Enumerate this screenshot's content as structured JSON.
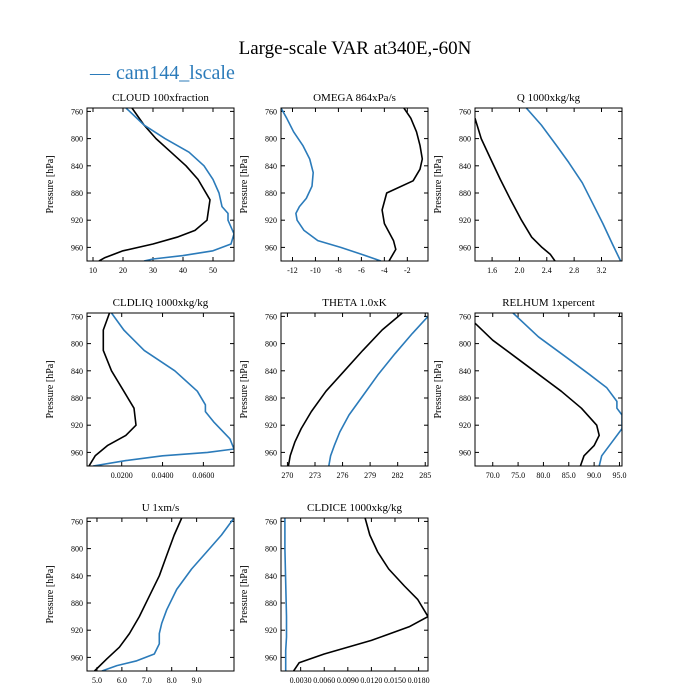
{
  "title": "Large-scale VAR at340E,-60N",
  "legend": {
    "marker": "—",
    "label": "cam144_lscale",
    "color": "#2b7bba"
  },
  "colors": {
    "black_series": "#000000",
    "blue_series": "#2b7bba"
  },
  "chart_data": [
    {
      "id": "cloud",
      "type": "line",
      "title": "CLOUD  100xfraction",
      "ylabel": "Pressure [hPa]",
      "xlim": [
        8,
        57
      ],
      "ylim": [
        980,
        755
      ],
      "xticks": [
        10,
        20,
        30,
        40,
        50
      ],
      "xtick_labels": [
        "10",
        "20",
        "30",
        "40",
        "50"
      ],
      "yticks": [
        760,
        800,
        840,
        880,
        920,
        960
      ],
      "ytick_labels": [
        "760",
        "800",
        "840",
        "880",
        "920",
        "960"
      ],
      "series": [
        {
          "name": "black",
          "x": [
            23,
            27,
            31,
            36,
            41,
            45,
            49,
            48,
            44,
            38,
            30,
            20,
            14,
            12
          ],
          "y": [
            755,
            780,
            800,
            820,
            840,
            860,
            890,
            920,
            935,
            945,
            955,
            965,
            975,
            980
          ]
        },
        {
          "name": "cam144_lscale",
          "x": [
            21,
            27,
            34,
            42,
            47,
            50,
            52,
            53,
            55,
            55,
            57,
            56,
            50,
            40,
            30,
            27
          ],
          "y": [
            755,
            780,
            800,
            820,
            840,
            860,
            880,
            900,
            910,
            920,
            940,
            955,
            965,
            972,
            977,
            980
          ]
        }
      ]
    },
    {
      "id": "omega",
      "type": "line",
      "title": "OMEGA  864xPa/s",
      "ylabel": "Pressure [hPa]",
      "xlim": [
        -13,
        -0.2
      ],
      "ylim": [
        980,
        755
      ],
      "xticks": [
        -12,
        -10,
        -8,
        -6,
        -4,
        -2
      ],
      "xtick_labels": [
        "-12",
        "-10",
        "-8",
        "-6",
        "-4",
        "-2"
      ],
      "yticks": [
        760,
        800,
        840,
        880,
        920,
        960
      ],
      "ytick_labels": [
        "760",
        "800",
        "840",
        "880",
        "920",
        "960"
      ],
      "series": [
        {
          "name": "black",
          "x": [
            -2.3,
            -1.7,
            -1.2,
            -0.9,
            -0.7,
            -0.9,
            -1.5,
            -3.8,
            -4.2,
            -4.0,
            -3.2,
            -3.0,
            -3.6
          ],
          "y": [
            755,
            770,
            790,
            810,
            830,
            845,
            862,
            880,
            905,
            925,
            950,
            963,
            980
          ]
        },
        {
          "name": "cam144_lscale",
          "x": [
            -13,
            -12.5,
            -11.9,
            -11.1,
            -10.5,
            -10.2,
            -10.3,
            -10.8,
            -11.4,
            -11.7,
            -11.6,
            -11.0,
            -9.8,
            -7.8,
            -6.0,
            -4.3
          ],
          "y": [
            755,
            770,
            790,
            810,
            830,
            850,
            870,
            888,
            900,
            910,
            920,
            935,
            950,
            960,
            970,
            980
          ]
        }
      ]
    },
    {
      "id": "q",
      "type": "line",
      "title": "Q  1000xkg/kg",
      "ylabel": "Pressure [hPa]",
      "xlim": [
        1.35,
        3.5
      ],
      "ylim": [
        980,
        755
      ],
      "xticks": [
        1.6,
        2.0,
        2.4,
        2.8,
        3.2
      ],
      "xtick_labels": [
        "1.6",
        "2.0",
        "2.4",
        "2.8",
        "3.2"
      ],
      "yticks": [
        760,
        800,
        840,
        880,
        920,
        960
      ],
      "ytick_labels": [
        "760",
        "800",
        "840",
        "880",
        "920",
        "960"
      ],
      "series": [
        {
          "name": "black",
          "x": [
            1.35,
            1.44,
            1.58,
            1.72,
            1.87,
            2.03,
            2.18,
            2.33,
            2.45,
            2.52
          ],
          "y": [
            770,
            800,
            830,
            860,
            890,
            920,
            945,
            960,
            970,
            980
          ]
        },
        {
          "name": "cam144_lscale",
          "x": [
            2.1,
            2.32,
            2.54,
            2.72,
            2.92,
            3.07,
            3.22,
            3.36,
            3.48
          ],
          "y": [
            755,
            780,
            810,
            835,
            865,
            895,
            925,
            955,
            980
          ]
        }
      ]
    },
    {
      "id": "cldliq",
      "type": "line",
      "title": "CLDLIQ  1000xkg/kg",
      "ylabel": "Pressure [hPa]",
      "xlim": [
        0.003,
        0.075
      ],
      "ylim": [
        980,
        755
      ],
      "xticks": [
        0.02,
        0.04,
        0.06
      ],
      "xtick_labels": [
        "0.0200",
        "0.0400",
        "0.0600"
      ],
      "yticks": [
        760,
        800,
        840,
        880,
        920,
        960
      ],
      "ytick_labels": [
        "760",
        "800",
        "840",
        "880",
        "920",
        "960"
      ],
      "series": [
        {
          "name": "black",
          "x": [
            0.014,
            0.011,
            0.011,
            0.015,
            0.021,
            0.026,
            0.027,
            0.022,
            0.013,
            0.007,
            0.004
          ],
          "y": [
            755,
            780,
            810,
            840,
            870,
            895,
            920,
            935,
            950,
            965,
            980
          ]
        },
        {
          "name": "cam144_lscale",
          "x": [
            0.015,
            0.021,
            0.031,
            0.046,
            0.057,
            0.061,
            0.061,
            0.065,
            0.073,
            0.075,
            0.062,
            0.04,
            0.022,
            0.006
          ],
          "y": [
            755,
            780,
            810,
            840,
            870,
            890,
            900,
            915,
            940,
            955,
            960,
            965,
            972,
            980
          ]
        }
      ]
    },
    {
      "id": "theta",
      "type": "line",
      "title": "THETA  1.0xK",
      "ylabel": "Pressure [hPa]",
      "xlim": [
        269.3,
        285.3
      ],
      "ylim": [
        980,
        755
      ],
      "xticks": [
        270,
        273,
        276,
        279,
        282,
        285
      ],
      "xtick_labels": [
        "270",
        "273",
        "276",
        "279",
        "282",
        "285"
      ],
      "yticks": [
        760,
        800,
        840,
        880,
        920,
        960
      ],
      "ytick_labels": [
        "760",
        "800",
        "840",
        "880",
        "920",
        "960"
      ],
      "series": [
        {
          "name": "black",
          "x": [
            282.5,
            280.3,
            278.2,
            276.2,
            274.2,
            272.6,
            271.5,
            270.8,
            270.3,
            270.1
          ],
          "y": [
            755,
            780,
            810,
            840,
            870,
            900,
            925,
            945,
            965,
            980
          ]
        },
        {
          "name": "cam144_lscale",
          "x": [
            285.3,
            283.6,
            281.7,
            279.9,
            278.3,
            276.7,
            275.7,
            275.1,
            274.7,
            274.5
          ],
          "y": [
            760,
            785,
            815,
            845,
            875,
            905,
            930,
            950,
            965,
            980
          ]
        }
      ]
    },
    {
      "id": "relhum",
      "type": "line",
      "title": "RELHUM  1xpercent",
      "ylabel": "Pressure [hPa]",
      "xlim": [
        66.5,
        95.5
      ],
      "ylim": [
        980,
        755
      ],
      "xticks": [
        70,
        75,
        80,
        85,
        90,
        95
      ],
      "xtick_labels": [
        "70.0",
        "75.0",
        "80.0",
        "85.0",
        "90.0",
        "95.0"
      ],
      "yticks": [
        760,
        800,
        840,
        880,
        920,
        960
      ],
      "ytick_labels": [
        "760",
        "800",
        "840",
        "880",
        "920",
        "960"
      ],
      "series": [
        {
          "name": "black",
          "x": [
            66.5,
            70,
            74.5,
            79,
            83.5,
            87.5,
            90.5,
            91,
            90,
            88,
            87.3
          ],
          "y": [
            770,
            795,
            820,
            845,
            870,
            895,
            920,
            935,
            950,
            965,
            980
          ]
        },
        {
          "name": "cam144_lscale",
          "x": [
            74,
            79,
            84.5,
            89,
            92.5,
            94.5,
            94.5,
            95.5,
            95.5,
            93.5,
            91.5,
            91
          ],
          "y": [
            755,
            790,
            820,
            845,
            865,
            885,
            895,
            905,
            925,
            945,
            965,
            980
          ]
        }
      ]
    },
    {
      "id": "u",
      "type": "line",
      "title": "U  1xm/s",
      "ylabel": "Pressure [hPa]",
      "xlim": [
        4.6,
        10.5
      ],
      "ylim": [
        980,
        755
      ],
      "xticks": [
        5,
        6,
        7,
        8,
        9
      ],
      "xtick_labels": [
        "5.0",
        "6.0",
        "7.0",
        "8.0",
        "9.0"
      ],
      "yticks": [
        760,
        800,
        840,
        880,
        920,
        960
      ],
      "ytick_labels": [
        "760",
        "800",
        "840",
        "880",
        "920",
        "960"
      ],
      "series": [
        {
          "name": "black",
          "x": [
            8.4,
            8.1,
            7.8,
            7.5,
            7.1,
            6.7,
            6.3,
            5.9,
            5.4,
            4.9
          ],
          "y": [
            755,
            780,
            810,
            840,
            870,
            900,
            925,
            945,
            962,
            980
          ]
        },
        {
          "name": "cam144_lscale",
          "x": [
            10.5,
            10.0,
            9.4,
            8.8,
            8.2,
            7.8,
            7.6,
            7.5,
            7.5,
            7.3,
            6.6,
            5.8,
            5.2
          ],
          "y": [
            755,
            780,
            805,
            830,
            860,
            890,
            910,
            925,
            940,
            955,
            965,
            972,
            980
          ]
        }
      ]
    },
    {
      "id": "cldice",
      "type": "line",
      "title": "CLDICE  1000xkg/kg",
      "ylabel": "Pressure [hPa]",
      "xlim": [
        0.0005,
        0.0192
      ],
      "ylim": [
        980,
        755
      ],
      "xticks": [
        0.003,
        0.006,
        0.009,
        0.012,
        0.015,
        0.018
      ],
      "xtick_labels": [
        "0.0030",
        "0.0060",
        "0.0090",
        "0.0120",
        "0.0150",
        "0.0180"
      ],
      "yticks": [
        760,
        800,
        840,
        880,
        920,
        960
      ],
      "ytick_labels": [
        "760",
        "800",
        "840",
        "880",
        "920",
        "960"
      ],
      "series": [
        {
          "name": "black",
          "x": [
            0.0112,
            0.0118,
            0.0128,
            0.0142,
            0.0162,
            0.0179,
            0.0192,
            0.0168,
            0.012,
            0.006,
            0.0028,
            0.0021
          ],
          "y": [
            755,
            780,
            805,
            830,
            855,
            875,
            900,
            915,
            935,
            955,
            968,
            980
          ]
        },
        {
          "name": "cam144_lscale",
          "x": [
            0.001,
            0.001,
            0.0011,
            0.0012,
            0.0012,
            0.0011,
            0.0011,
            0.0011
          ],
          "y": [
            755,
            800,
            850,
            900,
            930,
            950,
            965,
            980
          ]
        }
      ]
    }
  ]
}
